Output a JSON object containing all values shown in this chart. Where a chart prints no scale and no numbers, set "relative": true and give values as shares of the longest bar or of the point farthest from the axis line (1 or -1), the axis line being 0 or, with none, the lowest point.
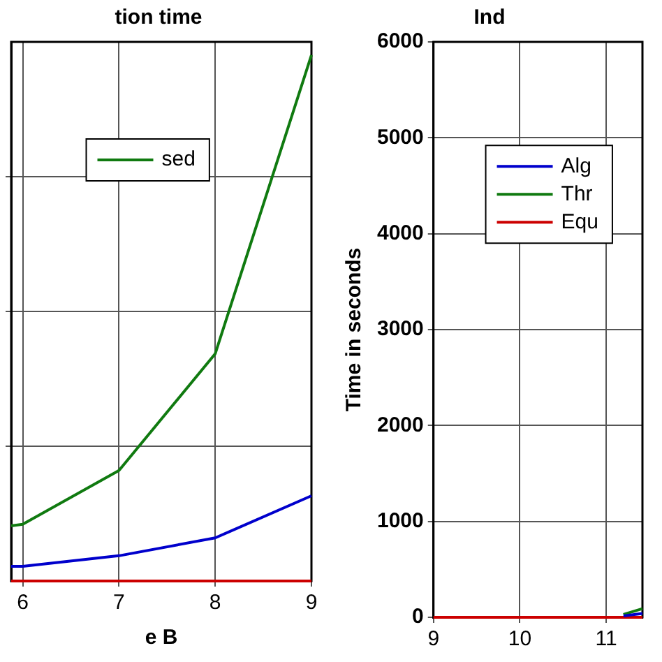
{
  "chart_data": [
    {
      "type": "line",
      "title": "tion time",
      "xlabel": "e B",
      "relative": true,
      "xlim": [
        5.88,
        9
      ],
      "xticks": [
        6,
        7,
        8,
        9
      ],
      "grid": true,
      "legend": "top left",
      "series": [
        {
          "color": "#0000cc",
          "x": [
            5.88,
            6,
            7,
            8,
            9
          ],
          "values": [
            0.028,
            0.028,
            0.048,
            0.082,
            0.162
          ]
        },
        {
          "name": "sed",
          "color": "#107a10",
          "x": [
            5.88,
            6,
            7,
            8,
            9
          ],
          "values": [
            0.105,
            0.108,
            0.21,
            0.432,
            1
          ]
        },
        {
          "color": "#cc0000",
          "x": [
            5.88,
            6,
            7,
            8,
            9
          ],
          "values": [
            0,
            0,
            0,
            0,
            0
          ]
        }
      ]
    },
    {
      "type": "line",
      "title": "Ind",
      "ylabel": "Time in seconds",
      "xlim": [
        9,
        11.42
      ],
      "xticks": [
        9,
        10,
        11
      ],
      "ylim": [
        0,
        6000
      ],
      "yticks": [
        0,
        1000,
        2000,
        3000,
        4000,
        5000,
        6000
      ],
      "grid": true,
      "legend": "top left",
      "series": [
        {
          "name": "Alg",
          "color": "#0000cc",
          "x": [
            11.2,
            11.42
          ],
          "values": [
            15,
            40
          ]
        },
        {
          "name": "Thr",
          "color": "#107a10",
          "x": [
            11.2,
            11.42
          ],
          "values": [
            30,
            90
          ]
        },
        {
          "name": "Equ",
          "color": "#cc0000",
          "x": [
            9,
            10,
            11,
            11.42
          ],
          "values": [
            0,
            0,
            0,
            0
          ]
        }
      ]
    }
  ]
}
